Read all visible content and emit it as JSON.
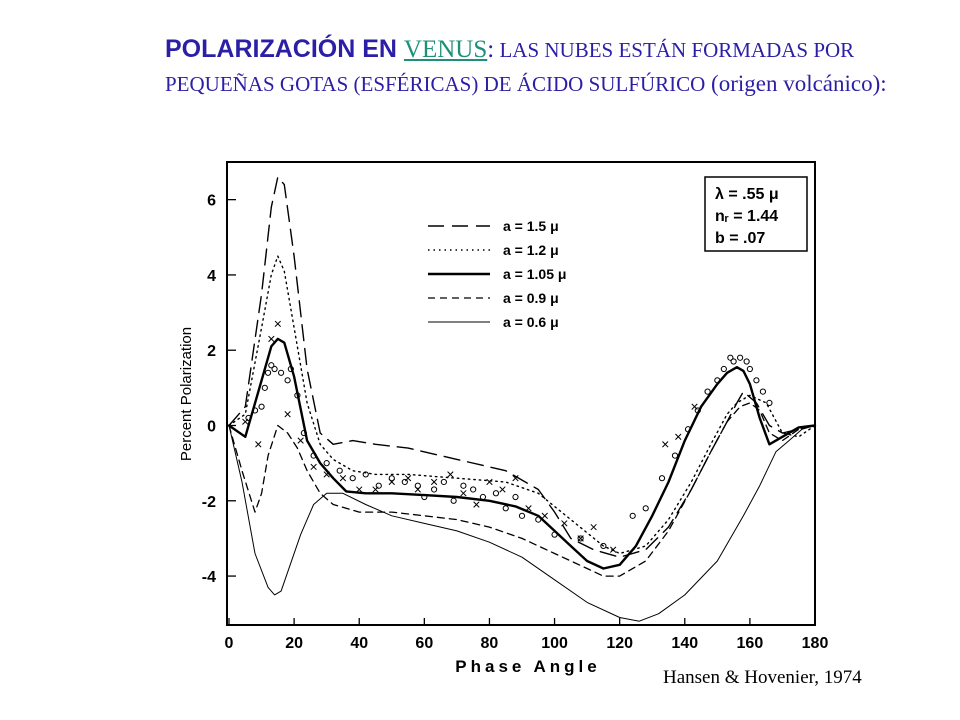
{
  "title": {
    "lead": "POLARIZACIÓN EN ",
    "link": "VENUS",
    "colon": ":",
    "rest_upper": " LAS NUBES ESTÁN FORMADAS POR PEQUEÑAS GOTAS (ESFÉRICAS) DE ÁCIDO SULFÚRICO",
    "rest_lower": " (origen volcánico):"
  },
  "citation": "Hansen & Hovenier, 1974",
  "chart_data": {
    "type": "line",
    "xlabel": "Phase Angle",
    "ylabel": "Percent Polarization",
    "xlim": [
      0,
      180
    ],
    "ylim": [
      -5.3,
      7
    ],
    "xticks": [
      0,
      20,
      40,
      60,
      80,
      100,
      120,
      140,
      160,
      180
    ],
    "yticks": [
      -4,
      -2,
      0,
      2,
      4,
      6
    ],
    "grid": false,
    "info_box": [
      "λ = .55 μ",
      "nᵣ = 1.44",
      "b = .07"
    ],
    "legend_position": "top-center",
    "series": [
      {
        "name": "a = 1.5 μ",
        "style": "longdash",
        "width": 1.4,
        "x": [
          0,
          5,
          10,
          13,
          15,
          17,
          20,
          24,
          28,
          32,
          38,
          45,
          55,
          70,
          85,
          95,
          100,
          105,
          112,
          120,
          128,
          135,
          142,
          148,
          153,
          156,
          158,
          162,
          166,
          170,
          175,
          180
        ],
        "y": [
          0,
          0.5,
          3.5,
          5.8,
          6.6,
          6.4,
          4.5,
          1.5,
          -0.2,
          -0.5,
          -0.4,
          -0.5,
          -0.6,
          -0.9,
          -1.2,
          -1.7,
          -2.3,
          -3.0,
          -3.3,
          -3.5,
          -3.3,
          -2.7,
          -1.7,
          -0.7,
          0.1,
          0.6,
          0.9,
          0.6,
          0,
          -0.2,
          -0.1,
          0
        ]
      },
      {
        "name": "a = 1.2 μ",
        "style": "dotted",
        "width": 1.4,
        "x": [
          0,
          5,
          10,
          13,
          15,
          17,
          20,
          24,
          28,
          32,
          38,
          45,
          55,
          70,
          85,
          95,
          105,
          115,
          120,
          128,
          135,
          142,
          148,
          153,
          156,
          160,
          165,
          170,
          175,
          180
        ],
        "y": [
          0,
          0.3,
          2.6,
          4.0,
          4.5,
          4.1,
          2.6,
          0.6,
          -0.5,
          -0.9,
          -1.2,
          -1.3,
          -1.3,
          -1.4,
          -1.5,
          -1.8,
          -2.5,
          -3.2,
          -3.4,
          -3.2,
          -2.5,
          -1.5,
          -0.5,
          0.3,
          0.6,
          0.8,
          0.6,
          -0.2,
          -0.3,
          0
        ]
      },
      {
        "name": "a = 1.05 μ",
        "style": "solid",
        "width": 2.4,
        "x": [
          0,
          5,
          10,
          13,
          15,
          17,
          20,
          24,
          28,
          32,
          36,
          42,
          50,
          60,
          70,
          80,
          88,
          95,
          100,
          105,
          110,
          115,
          120,
          125,
          130,
          135,
          140,
          145,
          150,
          153,
          156,
          158,
          160,
          163,
          166,
          170,
          175,
          180
        ],
        "y": [
          0,
          -0.3,
          1.2,
          2.1,
          2.3,
          2.2,
          1.3,
          -0.4,
          -1.0,
          -1.4,
          -1.75,
          -1.8,
          -1.8,
          -1.85,
          -1.9,
          -2.0,
          -2.15,
          -2.4,
          -2.8,
          -3.2,
          -3.6,
          -3.8,
          -3.7,
          -3.2,
          -2.4,
          -1.5,
          -0.4,
          0.5,
          1.1,
          1.4,
          1.55,
          1.45,
          1.1,
          0.2,
          -0.5,
          -0.3,
          -0.05,
          0
        ]
      },
      {
        "name": "a = 0.9 μ",
        "style": "dashed",
        "width": 1.3,
        "x": [
          0,
          4,
          8,
          10,
          12,
          15,
          18,
          21,
          24,
          28,
          32,
          40,
          50,
          60,
          70,
          80,
          90,
          100,
          110,
          115,
          120,
          128,
          135,
          142,
          148,
          153,
          157,
          160,
          163,
          166,
          170,
          175,
          180
        ],
        "y": [
          0,
          -1.2,
          -2.3,
          -1.8,
          -0.8,
          0,
          -0.2,
          -0.6,
          -1.2,
          -1.8,
          -2.1,
          -2.3,
          -2.3,
          -2.4,
          -2.5,
          -2.7,
          -3.0,
          -3.4,
          -3.8,
          -4.0,
          -4.0,
          -3.6,
          -2.8,
          -1.7,
          -0.7,
          0.1,
          0.5,
          0.6,
          0.4,
          -0.2,
          -0.4,
          -0.1,
          0
        ]
      },
      {
        "name": "a = 0.6 μ",
        "style": "solid",
        "width": 1.0,
        "x": [
          0,
          4,
          8,
          12,
          14,
          16,
          18,
          22,
          26,
          30,
          35,
          42,
          50,
          60,
          70,
          80,
          90,
          100,
          110,
          120,
          126,
          132,
          140,
          150,
          158,
          163,
          168,
          172,
          176,
          180
        ],
        "y": [
          0,
          -1.5,
          -3.4,
          -4.3,
          -4.5,
          -4.4,
          -3.9,
          -2.9,
          -2.1,
          -1.8,
          -1.8,
          -2.1,
          -2.4,
          -2.6,
          -2.8,
          -3.1,
          -3.5,
          -4.1,
          -4.7,
          -5.1,
          -5.2,
          -5.0,
          -4.5,
          -3.6,
          -2.4,
          -1.6,
          -0.7,
          -0.4,
          -0.1,
          0
        ]
      }
    ],
    "observations": {
      "circles": [
        [
          6,
          0.2
        ],
        [
          8,
          0.4
        ],
        [
          10,
          0.5
        ],
        [
          11,
          1.0
        ],
        [
          12,
          1.4
        ],
        [
          13,
          1.6
        ],
        [
          14,
          1.5
        ],
        [
          16,
          1.4
        ],
        [
          18,
          1.2
        ],
        [
          19,
          1.5
        ],
        [
          21,
          0.8
        ],
        [
          23,
          -0.2
        ],
        [
          26,
          -0.8
        ],
        [
          30,
          -1.0
        ],
        [
          34,
          -1.2
        ],
        [
          38,
          -1.4
        ],
        [
          42,
          -1.3
        ],
        [
          46,
          -1.6
        ],
        [
          50,
          -1.4
        ],
        [
          54,
          -1.5
        ],
        [
          58,
          -1.6
        ],
        [
          60,
          -1.9
        ],
        [
          63,
          -1.7
        ],
        [
          66,
          -1.5
        ],
        [
          69,
          -2.0
        ],
        [
          72,
          -1.6
        ],
        [
          75,
          -1.7
        ],
        [
          78,
          -1.9
        ],
        [
          82,
          -1.8
        ],
        [
          85,
          -2.2
        ],
        [
          88,
          -1.9
        ],
        [
          90,
          -2.4
        ],
        [
          95,
          -2.5
        ],
        [
          100,
          -2.9
        ],
        [
          108,
          -3.0
        ],
        [
          115,
          -3.2
        ],
        [
          124,
          -2.4
        ],
        [
          128,
          -2.2
        ],
        [
          133,
          -1.4
        ],
        [
          137,
          -0.8
        ],
        [
          141,
          -0.1
        ],
        [
          144,
          0.4
        ],
        [
          147,
          0.9
        ],
        [
          150,
          1.2
        ],
        [
          152,
          1.5
        ],
        [
          154,
          1.8
        ],
        [
          155,
          1.7
        ],
        [
          157,
          1.8
        ],
        [
          159,
          1.7
        ],
        [
          160,
          1.5
        ],
        [
          162,
          1.2
        ],
        [
          164,
          0.9
        ],
        [
          166,
          0.6
        ]
      ],
      "crosses": [
        [
          5,
          0.1
        ],
        [
          9,
          -0.5
        ],
        [
          13,
          2.3
        ],
        [
          15,
          2.7
        ],
        [
          18,
          0.3
        ],
        [
          22,
          -0.4
        ],
        [
          26,
          -1.1
        ],
        [
          30,
          -1.3
        ],
        [
          35,
          -1.4
        ],
        [
          40,
          -1.7
        ],
        [
          45,
          -1.7
        ],
        [
          50,
          -1.5
        ],
        [
          55,
          -1.4
        ],
        [
          58,
          -1.7
        ],
        [
          63,
          -1.5
        ],
        [
          68,
          -1.3
        ],
        [
          72,
          -1.8
        ],
        [
          76,
          -2.1
        ],
        [
          80,
          -1.5
        ],
        [
          84,
          -1.7
        ],
        [
          88,
          -1.4
        ],
        [
          92,
          -2.2
        ],
        [
          97,
          -2.4
        ],
        [
          103,
          -2.6
        ],
        [
          108,
          -3.0
        ],
        [
          112,
          -2.7
        ],
        [
          118,
          -3.3
        ],
        [
          134,
          -0.5
        ],
        [
          138,
          -0.3
        ],
        [
          143,
          0.5
        ]
      ]
    }
  }
}
